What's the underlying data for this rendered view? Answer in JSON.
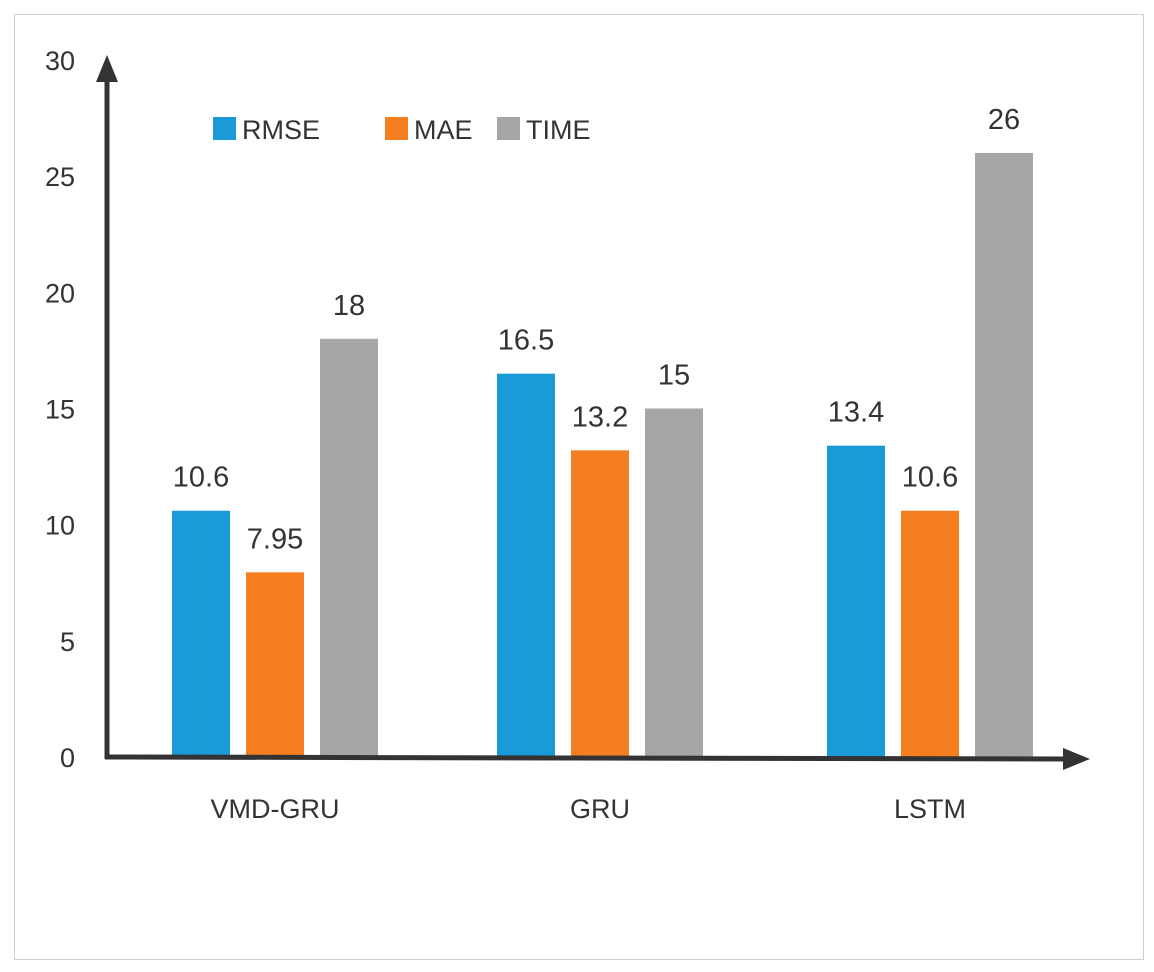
{
  "chart_data": {
    "type": "bar",
    "categories": [
      "VMD-GRU",
      "GRU",
      "LSTM"
    ],
    "series": [
      {
        "name": "RMSE",
        "values": [
          10.6,
          16.5,
          13.4
        ],
        "labels": [
          "10.6",
          "16.5",
          "13.4"
        ],
        "color": "#1a9bd7"
      },
      {
        "name": "MAE",
        "values": [
          7.95,
          13.2,
          10.6
        ],
        "labels": [
          "7.95",
          "13.2",
          "10.6"
        ],
        "color": "#f57f20"
      },
      {
        "name": "TIME",
        "values": [
          18,
          15,
          26
        ],
        "labels": [
          "18",
          "15",
          "26"
        ],
        "color": "#a6a6a6"
      }
    ],
    "ylim": [
      0,
      30
    ],
    "yticks": [
      "0",
      "5",
      "10",
      "15",
      "20",
      "25",
      "30"
    ],
    "title": "",
    "xlabel": "",
    "ylabel": "",
    "legend_position": "top-left",
    "grid": false,
    "axis_color": "#333333"
  }
}
